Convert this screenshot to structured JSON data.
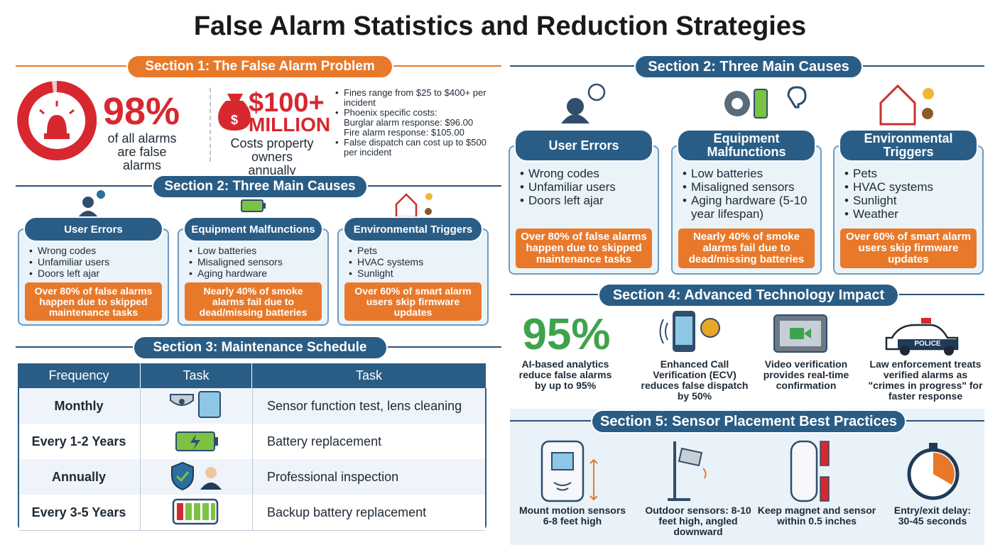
{
  "title": "False Alarm Statistics and Reduction Strategies",
  "section1": {
    "heading": "Section 1: The False Alarm Problem",
    "alarm_stat": {
      "value": "98%",
      "caption": "of all alarms are false alarms"
    },
    "cost_stat": {
      "value": "$100+",
      "unit": "MILLION",
      "caption": "Costs property owners annually"
    },
    "facts": [
      {
        "text": "Fines range from $25 to $400+ per incident"
      },
      {
        "text": "Phoenix specific costs:",
        "items": [
          "Burglar alarm response: $96.00",
          "Fire alarm response: $105.00"
        ]
      },
      {
        "text": "False dispatch can cost up to $500 per incident"
      }
    ]
  },
  "causes_left": {
    "heading": "Section 2: Three Main Causes",
    "cards": [
      {
        "title": "User Errors",
        "items": [
          "Wrong codes",
          "Unfamiliar users",
          "Doors left ajar"
        ],
        "note": "Over 80% of false alarms happen due to skipped maintenance tasks"
      },
      {
        "title": "Equipment Malfunctions",
        "items": [
          "Low batteries",
          "Misaligned sensors",
          "Aging hardware"
        ],
        "note": "Nearly 40% of smoke alarms fail due to dead/missing batteries"
      },
      {
        "title": "Environmental Triggers",
        "items": [
          "Pets",
          "HVAC systems",
          "Sunlight"
        ],
        "note": "Over 60% of smart alarm users skip firmware updates"
      }
    ]
  },
  "maintenance": {
    "heading": "Section 3: Maintenance Schedule",
    "columns": [
      "Frequency",
      "Task",
      "Task"
    ],
    "rows": [
      {
        "frequency": "Monthly",
        "task": "Sensor function test, lens cleaning"
      },
      {
        "frequency": "Every 1-2 Years",
        "task": "Battery replacement"
      },
      {
        "frequency": "Annually",
        "task": "Professional inspection"
      },
      {
        "frequency": "Every 3-5 Years",
        "task": "Backup battery replacement"
      }
    ]
  },
  "causes_right": {
    "heading": "Section 2: Three Main Causes",
    "cards": [
      {
        "title": "User Errors",
        "items": [
          "Wrong codes",
          "Unfamiliar users",
          "Doors left ajar"
        ],
        "note": "Over 80% of false alarms happen due to skipped maintenance tasks"
      },
      {
        "title": "Equipment Malfunctions",
        "items": [
          "Low batteries",
          "Misaligned sensors",
          "Aging hardware (5-10 year lifespan)"
        ],
        "note": "Nearly 40% of smoke alarms fail due to dead/missing batteries"
      },
      {
        "title": "Environmental Triggers",
        "items": [
          "Pets",
          "HVAC systems",
          "Sunlight",
          "Weather"
        ],
        "note": "Over 60% of smart alarm users skip firmware updates"
      }
    ]
  },
  "technology": {
    "heading": "Section 4: Advanced Technology Impact",
    "stat": "95%",
    "police_label": "POLICE",
    "items": [
      "AI-based analytics reduce false alarms by up to 95%",
      "Enhanced Call Verification (ECV) reduces false dispatch by 50%",
      "Video verification provides real-time confirmation",
      "Law enforcement treats verified alarms as \"crimes in progress\" for faster response"
    ]
  },
  "placement": {
    "heading": "Section 5: Sensor Placement Best Practices",
    "items": [
      "Mount motion sensors 6-8 feet high",
      "Outdoor sensors: 8-10 feet high, angled downward",
      "Keep magnet and sensor within 0.5 inches",
      "Entry/exit delay: 30-45 seconds"
    ]
  }
}
